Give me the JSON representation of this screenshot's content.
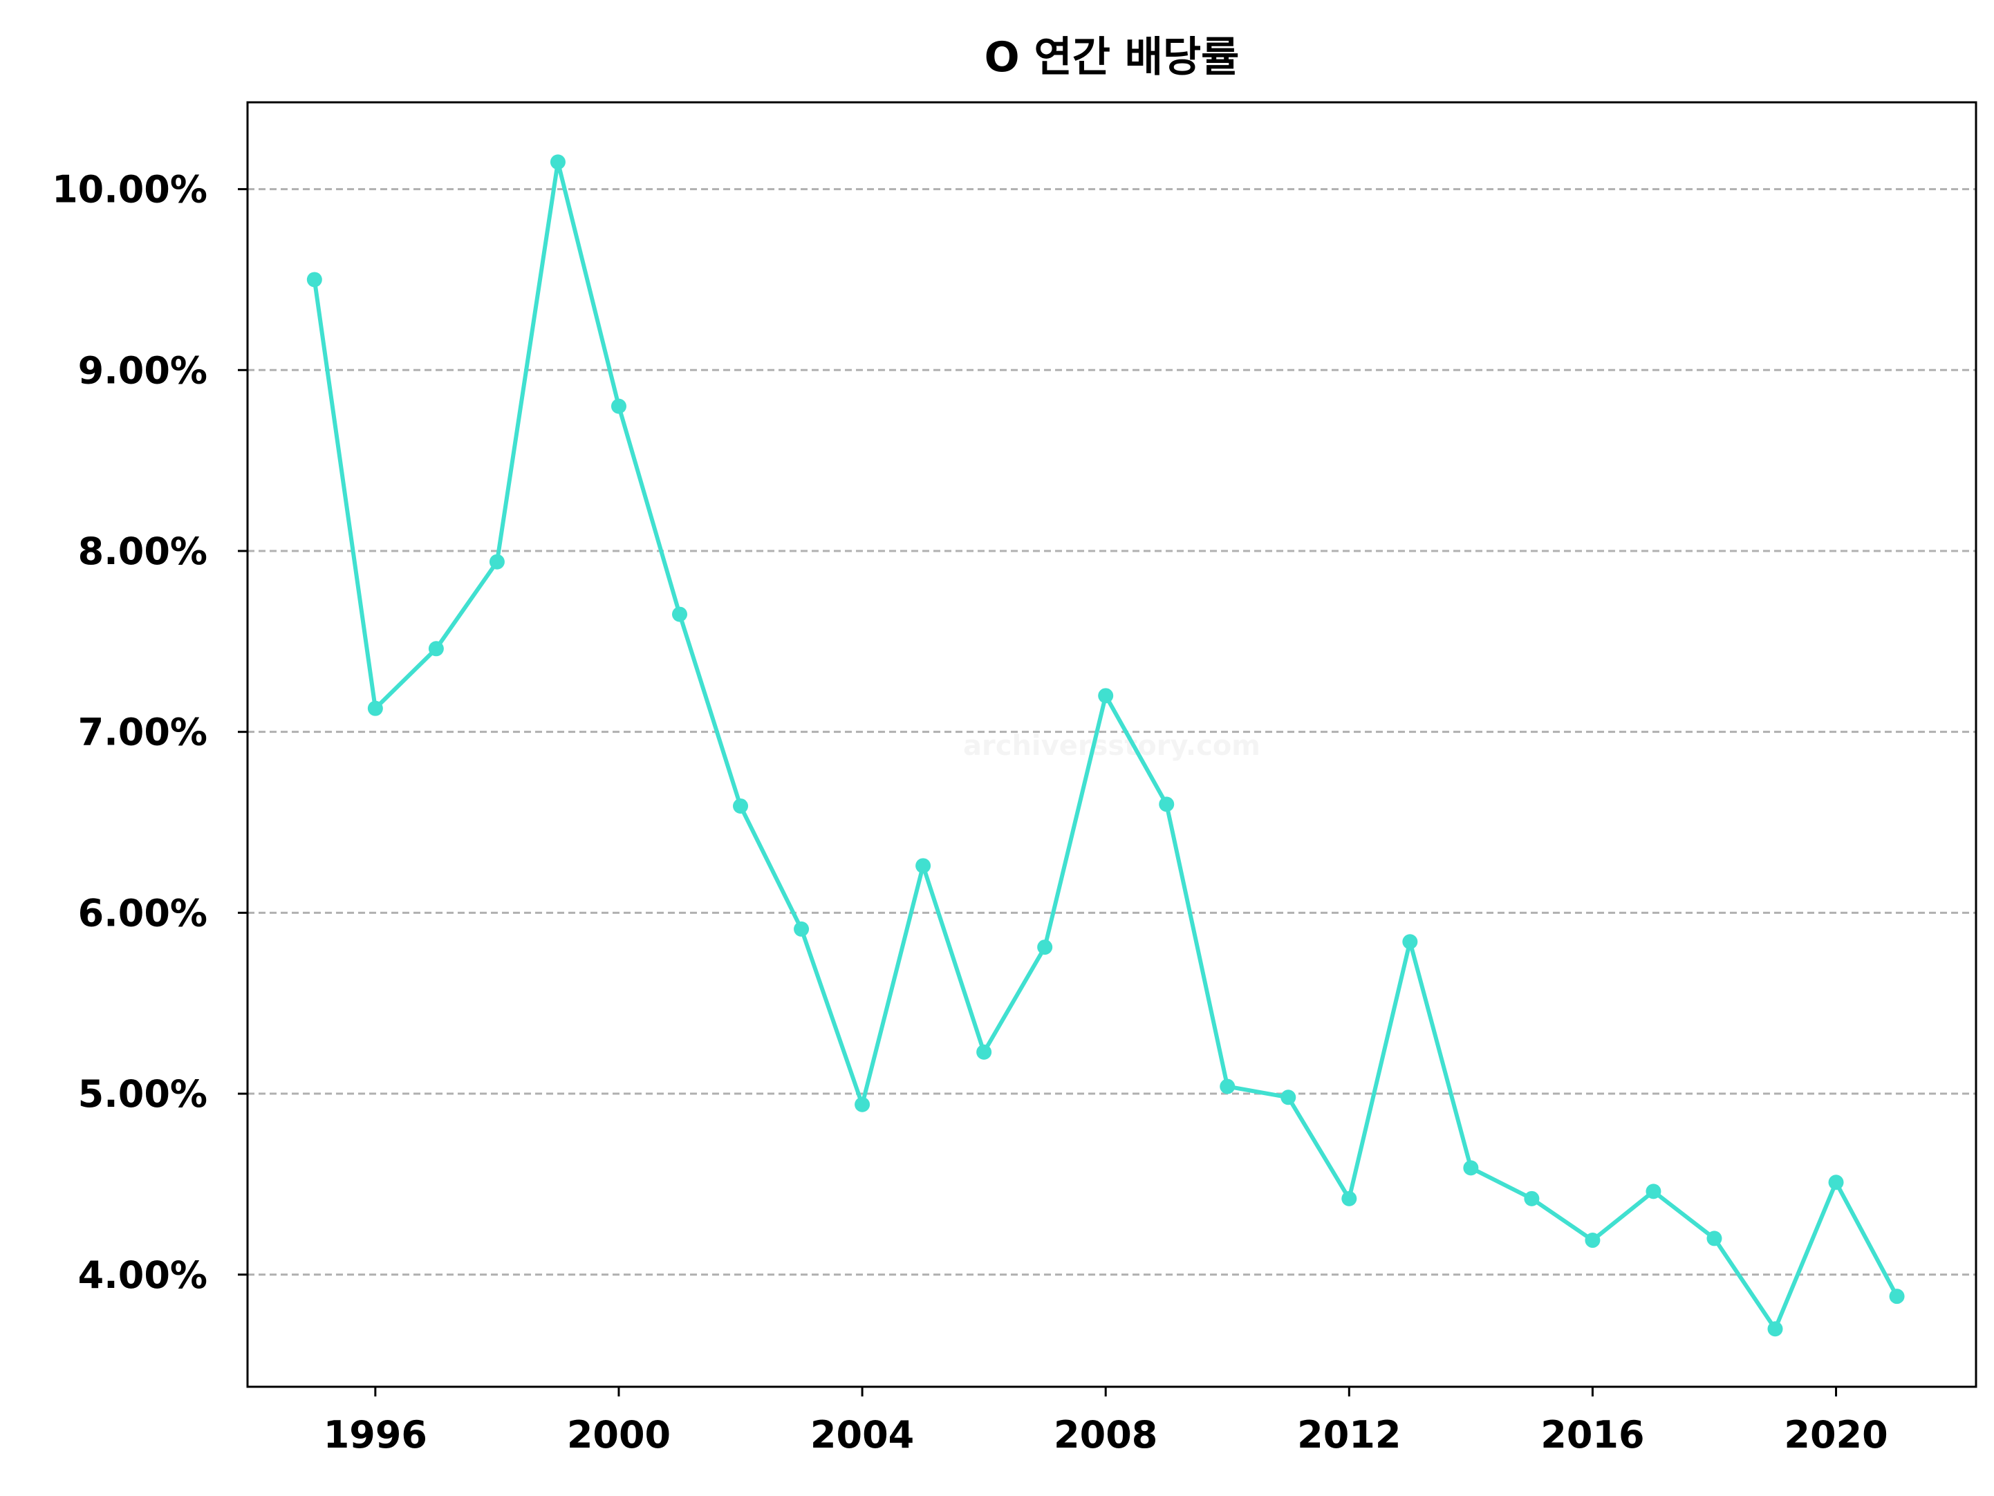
{
  "chart_data": {
    "type": "line",
    "title": "O 연간 배당률",
    "xlabel": "",
    "ylabel": "",
    "xlim": [
      1993.9,
      2022.3
    ],
    "ylim": [
      3.38,
      10.48
    ],
    "x_ticks": [
      1996,
      2000,
      2004,
      2008,
      2012,
      2016,
      2020
    ],
    "x_tick_labels": [
      "1996",
      "2000",
      "2004",
      "2008",
      "2012",
      "2016",
      "2020"
    ],
    "y_ticks": [
      4,
      5,
      6,
      7,
      8,
      9,
      10
    ],
    "y_tick_labels": [
      "4.00%",
      "5.00%",
      "6.00%",
      "7.00%",
      "8.00%",
      "9.00%",
      "10.00%"
    ],
    "grid": {
      "y": true,
      "x": false,
      "style": "dashed"
    },
    "watermark": "archiversstory.com",
    "series": [
      {
        "color": "#40e0d0",
        "marker": "circle",
        "x": [
          1995,
          1996,
          1997,
          1998,
          1999,
          2000,
          2001,
          2002,
          2003,
          2004,
          2005,
          2006,
          2007,
          2008,
          2009,
          2010,
          2011,
          2012,
          2013,
          2014,
          2015,
          2016,
          2017,
          2018,
          2019,
          2020,
          2021
        ],
        "y": [
          9.5,
          7.13,
          7.46,
          7.94,
          10.15,
          8.8,
          7.65,
          6.59,
          5.91,
          4.94,
          6.26,
          5.23,
          5.81,
          7.2,
          6.6,
          5.04,
          4.98,
          4.42,
          5.84,
          4.59,
          4.42,
          4.19,
          4.46,
          4.2,
          3.7,
          4.51,
          3.88
        ]
      }
    ]
  }
}
